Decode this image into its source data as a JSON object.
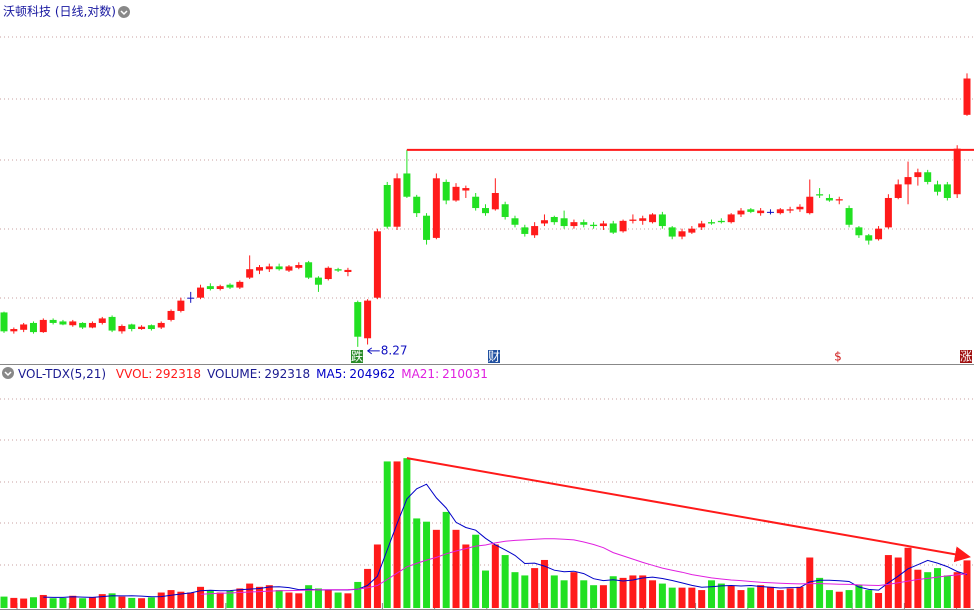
{
  "chart_data": {
    "type": "candlestick",
    "title": "沃顿科技 (日线,对数)",
    "log_scale": true,
    "ylim": [
      8.23,
      13.89
    ],
    "colors": {
      "up": "#ff1a1a",
      "down": "#22e022",
      "flat": "#1010c0"
    },
    "low_label": 8.27,
    "markers": [
      "跌",
      "财",
      "$",
      "涨"
    ],
    "candles": {
      "open": [
        8.72,
        8.47,
        8.49,
        8.58,
        8.46,
        8.62,
        8.6,
        8.55,
        8.58,
        8.52,
        8.58,
        8.66,
        8.47,
        8.56,
        8.5,
        8.55,
        8.52,
        8.62,
        8.74,
        8.92,
        8.92,
        9.08,
        9.04,
        9.1,
        9.06,
        9.2,
        9.3,
        9.32,
        9.36,
        9.3,
        9.34,
        9.42,
        9.2,
        9.18,
        9.32,
        9.28,
        8.86,
        8.38,
        8.92,
        10.61,
        9.95,
        10.8,
        10.42,
        10.12,
        9.78,
        10.66,
        10.36,
        10.52,
        10.42,
        10.24,
        10.22,
        10.3,
        10.08,
        9.94,
        9.82,
        10.0,
        10.1,
        10.08,
        9.96,
        10.02,
        9.98,
        9.96,
        10.0,
        9.88,
        10.04,
        10.04,
        10.02,
        10.14,
        9.94,
        9.8,
        9.86,
        9.94,
        10.02,
        10.04,
        10.02,
        10.14,
        10.22,
        10.16,
        10.18,
        10.16,
        10.2,
        10.22,
        10.16,
        10.46,
        10.4,
        10.36,
        10.24,
        9.94,
        9.82,
        9.76,
        9.94,
        10.4,
        10.62,
        10.74,
        10.82,
        10.62,
        10.62,
        10.46,
        11.82
      ],
      "high": [
        8.73,
        8.52,
        8.58,
        8.6,
        8.64,
        8.64,
        8.62,
        8.62,
        8.59,
        8.6,
        8.66,
        8.68,
        8.56,
        8.57,
        8.55,
        8.56,
        8.6,
        8.76,
        8.92,
        9.0,
        9.1,
        9.12,
        9.1,
        9.12,
        9.16,
        9.52,
        9.38,
        9.4,
        9.4,
        9.38,
        9.42,
        9.44,
        9.22,
        9.36,
        9.34,
        9.34,
        8.88,
        8.9,
        9.92,
        10.66,
        10.8,
        11.2,
        10.45,
        10.16,
        10.8,
        10.7,
        10.64,
        10.6,
        10.48,
        10.3,
        10.72,
        10.34,
        10.12,
        9.98,
        10.02,
        10.14,
        10.12,
        10.2,
        10.06,
        10.06,
        10.02,
        10.04,
        10.04,
        10.06,
        10.14,
        10.12,
        10.16,
        10.18,
        9.96,
        9.92,
        9.96,
        10.04,
        10.06,
        10.08,
        10.16,
        10.24,
        10.24,
        10.24,
        10.22,
        10.24,
        10.26,
        10.3,
        10.7,
        10.56,
        10.46,
        10.42,
        10.28,
        9.96,
        9.84,
        9.96,
        10.46,
        10.7,
        11.0,
        10.88,
        10.86,
        10.68,
        10.66,
        11.28,
        12.6
      ],
      "low": [
        8.45,
        8.44,
        8.46,
        8.44,
        8.45,
        8.56,
        8.55,
        8.53,
        8.5,
        8.51,
        8.56,
        8.46,
        8.44,
        8.47,
        8.49,
        8.48,
        8.5,
        8.6,
        8.72,
        8.85,
        8.9,
        9.02,
        9.02,
        9.04,
        9.04,
        9.18,
        9.25,
        9.28,
        9.3,
        9.28,
        9.32,
        9.18,
        9.0,
        9.16,
        9.28,
        9.22,
        8.27,
        8.3,
        8.9,
        9.92,
        9.9,
        10.4,
        10.1,
        9.68,
        9.76,
        10.3,
        10.34,
        10.4,
        10.2,
        10.12,
        10.2,
        10.06,
        9.94,
        9.8,
        9.78,
        9.96,
        9.98,
        9.92,
        9.92,
        9.94,
        9.92,
        9.9,
        9.84,
        9.86,
        10.0,
        9.98,
        10.0,
        9.92,
        9.76,
        9.76,
        9.84,
        9.9,
        9.98,
        10.0,
        10.0,
        10.1,
        10.16,
        10.12,
        10.14,
        10.14,
        10.16,
        10.18,
        10.14,
        10.4,
        10.34,
        10.3,
        9.94,
        9.78,
        9.68,
        9.74,
        9.92,
        10.38,
        10.3,
        10.6,
        10.62,
        10.44,
        10.36,
        10.4,
        11.8
      ],
      "close": [
        8.47,
        8.5,
        8.56,
        8.46,
        8.62,
        8.58,
        8.56,
        8.6,
        8.52,
        8.58,
        8.64,
        8.48,
        8.54,
        8.5,
        8.53,
        8.5,
        8.58,
        8.74,
        8.88,
        8.92,
        9.06,
        9.04,
        9.08,
        9.06,
        9.14,
        9.32,
        9.35,
        9.36,
        9.32,
        9.36,
        9.38,
        9.2,
        9.1,
        9.34,
        9.3,
        9.31,
        8.4,
        8.88,
        9.88,
        9.95,
        10.72,
        10.42,
        10.16,
        9.75,
        10.72,
        10.36,
        10.58,
        10.56,
        10.24,
        10.16,
        10.48,
        10.1,
        9.98,
        9.84,
        9.96,
        10.05,
        10.02,
        9.96,
        10.02,
        9.98,
        9.96,
        10.0,
        9.86,
        10.04,
        10.06,
        10.08,
        10.14,
        9.96,
        9.8,
        9.88,
        9.92,
        10.0,
        10.0,
        10.02,
        10.14,
        10.2,
        10.18,
        10.2,
        10.18,
        10.22,
        10.22,
        10.26,
        10.42,
        10.44,
        10.36,
        10.38,
        9.98,
        9.82,
        9.74,
        9.92,
        10.4,
        10.62,
        10.74,
        10.82,
        10.66,
        10.5,
        10.4,
        11.22,
        12.5
      ]
    },
    "volume": {
      "title": "VOL-TDX(5,21)",
      "ylim": [
        0,
        1400000
      ],
      "values": [
        70000,
        62000,
        58000,
        66000,
        80000,
        60000,
        62000,
        75000,
        60000,
        66000,
        85000,
        90000,
        70000,
        62000,
        60000,
        65000,
        95000,
        110000,
        100000,
        95000,
        130000,
        110000,
        95000,
        105000,
        120000,
        150000,
        130000,
        140000,
        110000,
        95000,
        90000,
        140000,
        120000,
        110000,
        95000,
        90000,
        160000,
        240000,
        390000,
        900000,
        900000,
        920000,
        550000,
        530000,
        480000,
        590000,
        480000,
        390000,
        450000,
        230000,
        390000,
        325000,
        220000,
        200000,
        245000,
        295000,
        200000,
        170000,
        220000,
        170000,
        140000,
        140000,
        195000,
        185000,
        200000,
        200000,
        170000,
        150000,
        125000,
        125000,
        125000,
        110000,
        170000,
        150000,
        135000,
        110000,
        125000,
        140000,
        130000,
        110000,
        120000,
        130000,
        310000,
        185000,
        110000,
        100000,
        110000,
        140000,
        110000,
        92000,
        325000,
        310000,
        370000,
        235000,
        220000,
        245000,
        200000,
        220000,
        292318
      ],
      "indicators": [
        {
          "name": "VVOL:",
          "value": 292318,
          "color": "#ff1a1a"
        },
        {
          "name": "VOLUME:",
          "value": 292318,
          "color": "#1a1a90"
        },
        {
          "name": "MA5:",
          "value": 204962,
          "color": "#0000c8",
          "values": [
            null,
            null,
            null,
            null,
            67000,
            65000,
            65000,
            69000,
            67000,
            65000,
            70000,
            75000,
            74000,
            75000,
            73000,
            69000,
            70000,
            78000,
            86000,
            93000,
            106000,
            109000,
            106000,
            107000,
            112000,
            116000,
            120000,
            129000,
            130000,
            125000,
            113000,
            115000,
            111000,
            111000,
            111000,
            111000,
            115000,
            139000,
            195000,
            356000,
            518000,
            670000,
            732000,
            760000,
            676000,
            614000,
            526000,
            494000,
            478000,
            428000,
            388000,
            357000,
            323000,
            273000,
            276000,
            257000,
            232000,
            222000,
            226000,
            211000,
            180000,
            168000,
            173000,
            166000,
            172000,
            184000,
            190000,
            181000,
            169000,
            154000,
            139000,
            127000,
            131000,
            136000,
            138000,
            135000,
            138000,
            132000,
            128000,
            123000,
            125000,
            126000,
            160000,
            171000,
            171000,
            167000,
            163000,
            129000,
            114000,
            110000,
            155000,
            195000,
            241000,
            266000,
            292000,
            276000,
            254000,
            224000,
            204962
          ]
        },
        {
          "name": "MA21:",
          "value": 210031,
          "color": "#e020e0",
          "values": [
            null,
            null,
            null,
            null,
            null,
            null,
            null,
            null,
            null,
            null,
            null,
            null,
            null,
            null,
            null,
            null,
            null,
            null,
            null,
            null,
            85000,
            88000,
            90000,
            92000,
            95000,
            98000,
            101000,
            104000,
            106000,
            107000,
            108000,
            110000,
            111000,
            112000,
            112000,
            113000,
            116000,
            124000,
            138000,
            175000,
            214000,
            253000,
            274000,
            294000,
            311000,
            333000,
            350000,
            365000,
            380000,
            387000,
            400000,
            410000,
            415000,
            418000,
            422000,
            425000,
            425000,
            422000,
            418000,
            405000,
            390000,
            370000,
            340000,
            320000,
            300000,
            280000,
            262000,
            245000,
            232000,
            220000,
            205000,
            195000,
            185000,
            178000,
            172000,
            168000,
            163000,
            158000,
            155000,
            152000,
            150000,
            148000,
            150000,
            150000,
            148000,
            146000,
            145000,
            142000,
            140000,
            138000,
            145000,
            155000,
            165000,
            175000,
            182000,
            190000,
            197000,
            203000,
            210031
          ]
        }
      ]
    }
  }
}
